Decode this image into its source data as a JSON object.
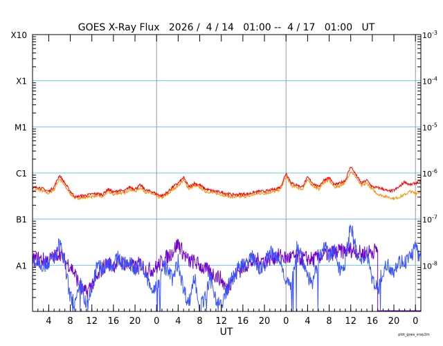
{
  "chart_data": {
    "type": "line",
    "title": "GOES X-Ray Flux   2026 /  4 / 14   01:00 --  4 / 17   01:00   UT",
    "xlabel": "UT",
    "ylabel": "",
    "footer": "plot_goes_xray2m",
    "x_unit": "hours since 2026-04-14 01:00 UT",
    "xlim": [
      0,
      72
    ],
    "ylim": [
      1e-09,
      0.001
    ],
    "y_scale": "log",
    "grid": true,
    "x_ticks": [
      {
        "hour": 3,
        "label": "4"
      },
      {
        "hour": 7,
        "label": "8"
      },
      {
        "hour": 11,
        "label": "12"
      },
      {
        "hour": 15,
        "label": "16"
      },
      {
        "hour": 19,
        "label": "20"
      },
      {
        "hour": 23,
        "label": "0"
      },
      {
        "hour": 27,
        "label": "4"
      },
      {
        "hour": 31,
        "label": "8"
      },
      {
        "hour": 35,
        "label": "12"
      },
      {
        "hour": 39,
        "label": "16"
      },
      {
        "hour": 43,
        "label": "20"
      },
      {
        "hour": 47,
        "label": "0"
      },
      {
        "hour": 51,
        "label": "4"
      },
      {
        "hour": 55,
        "label": "8"
      },
      {
        "hour": 59,
        "label": "12"
      },
      {
        "hour": 63,
        "label": "16"
      },
      {
        "hour": 67,
        "label": "20"
      },
      {
        "hour": 71,
        "label": "0"
      }
    ],
    "day_boundaries": [
      23,
      47,
      71
    ],
    "flare_class_labels": [
      {
        "value": 0.001,
        "label": "X10"
      },
      {
        "value": 0.0001,
        "label": "X1"
      },
      {
        "value": 1e-05,
        "label": "M1"
      },
      {
        "value": 1e-06,
        "label": "C1"
      },
      {
        "value": 1e-07,
        "label": "B1"
      },
      {
        "value": 1e-08,
        "label": "A1"
      }
    ],
    "right_labels": [
      {
        "value": 0.001,
        "base": "10",
        "exp": "-3"
      },
      {
        "value": 0.0001,
        "base": "10",
        "exp": "-4"
      },
      {
        "value": 1e-05,
        "base": "10",
        "exp": "-5"
      },
      {
        "value": 1e-06,
        "base": "10",
        "exp": "-6"
      },
      {
        "value": 1e-07,
        "base": "10",
        "exp": "-7"
      },
      {
        "value": 1e-08,
        "base": "10",
        "exp": "-8"
      }
    ],
    "colors": {
      "long_primary": "#ff0000",
      "long_secondary": "#ff8c00",
      "short_primary": "#3a55ff",
      "short_secondary": "#7000cc",
      "grid": "#66c8f0",
      "day_line": "#999999"
    },
    "series": [
      {
        "name": "long-secondary",
        "color_key": "long_secondary",
        "scale": 1e-07,
        "values": [
          4,
          4.4,
          4,
          3.6,
          4.4,
          7.5,
          5.2,
          3.6,
          2.8,
          2.9,
          3,
          3.1,
          3.2,
          3,
          4,
          3.4,
          3.7,
          3.6,
          4.4,
          4,
          4.8,
          3.8,
          3.6,
          3.1,
          2.9,
          3.4,
          4.4,
          5.3,
          7,
          4.5,
          5.3,
          4.9,
          4,
          3.8,
          3.6,
          3.4,
          3.2,
          3,
          3,
          3.1,
          3.1,
          3.4,
          3.6,
          3.6,
          3.8,
          4,
          4.4,
          8.5,
          5.3,
          4.9,
          4.4,
          7,
          5.3,
          4.4,
          6.2,
          7,
          4.9,
          5.3,
          6.2,
          11,
          8,
          5.2,
          6,
          4.4,
          3.5,
          3.2,
          3,
          2.8,
          3,
          3.4,
          4,
          3.6,
          4
        ]
      },
      {
        "name": "long-primary",
        "color_key": "long_primary",
        "scale": 1e-07,
        "values": [
          4.5,
          5,
          4.5,
          4,
          5,
          9,
          6,
          4,
          3,
          3.2,
          3.3,
          3.5,
          3.6,
          3.4,
          4.5,
          3.8,
          4.2,
          4,
          5,
          4.5,
          5.5,
          4.2,
          4,
          3.5,
          3.2,
          3.8,
          5,
          6,
          8,
          5,
          6,
          5.5,
          4.5,
          4.2,
          4,
          3.8,
          3.6,
          3.4,
          3.4,
          3.5,
          3.5,
          3.8,
          4,
          4,
          4.2,
          4.5,
          5,
          10,
          6,
          5.5,
          5,
          8,
          6,
          5,
          7,
          8,
          5.5,
          6,
          7,
          14,
          9,
          6,
          7,
          5,
          4.8,
          4.5,
          4,
          4.2,
          5,
          6.5,
          5.5,
          6,
          7
        ]
      },
      {
        "name": "short-secondary",
        "color_key": "short_secondary",
        "scale": 1e-08,
        "values": [
          1.3,
          1.4,
          1.3,
          1.3,
          1.5,
          2,
          1.2,
          1,
          0.6,
          0.3,
          0.25,
          0.4,
          0.5,
          0.9,
          1.1,
          1,
          1.2,
          1.1,
          1,
          0.9,
          1.1,
          0.8,
          0.8,
          0.9,
          1.2,
          1.5,
          2,
          3,
          1.8,
          1.2,
          1.2,
          1,
          0.8,
          0.7,
          0.6,
          0.5,
          0.3,
          0.5,
          0.7,
          0.9,
          1.1,
          1.2,
          1.3,
          1.3,
          1.4,
          1.5,
          1.6,
          1.4,
          1.5,
          1.5,
          1.4,
          1.4,
          1.3,
          1.5,
          1.7,
          1.8,
          1.9,
          2,
          2,
          2.2,
          2,
          1.8,
          1.9,
          2,
          2.2,
          null,
          null,
          null,
          null,
          null,
          null,
          null,
          null
        ]
      },
      {
        "name": "short-primary",
        "color_key": "short_primary",
        "scale": 1e-08,
        "values": [
          1.2,
          1.3,
          1,
          1.2,
          1.3,
          3,
          1,
          0.2,
          0.15,
          0.4,
          0.12,
          0.3,
          1,
          0.8,
          1.2,
          1,
          1.5,
          1,
          1.2,
          0.8,
          1,
          0.6,
          0.3,
          0.3,
          1,
          0.8,
          0.5,
          1.2,
          0.3,
          0.15,
          0.6,
          0.12,
          0.2,
          0.5,
          0.2,
          0.12,
          0.3,
          0.5,
          0.8,
          1,
          1.2,
          1.5,
          0.8,
          1,
          2,
          1.5,
          1.2,
          0.5,
          0.3,
          3,
          1.5,
          0.6,
          0.4,
          1.2,
          3,
          1.5,
          2,
          0.8,
          1.2,
          8,
          2,
          1,
          2,
          0.5,
          0.3,
          0.8,
          1,
          0.8,
          1.2,
          1.2,
          1.5,
          2.5,
          1.2
        ]
      }
    ]
  }
}
